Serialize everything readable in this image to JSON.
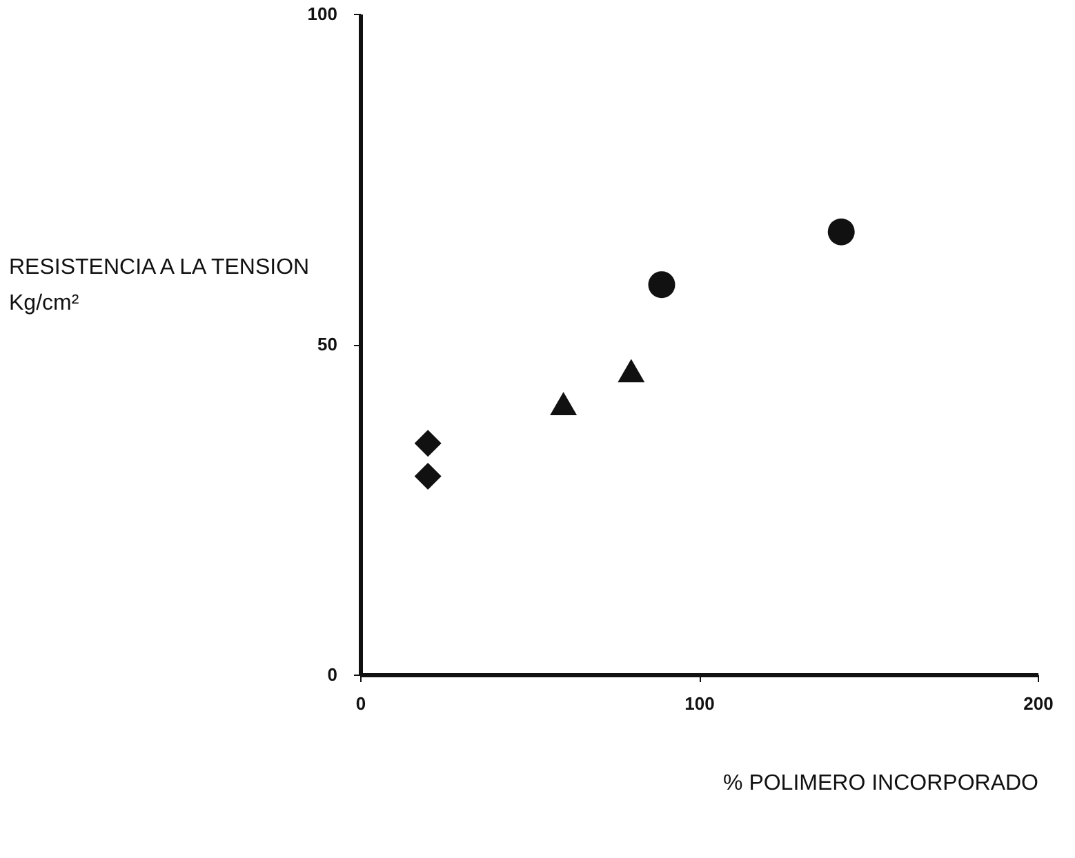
{
  "chart_data": {
    "type": "scatter",
    "xlabel": "% POLIMERO INCORPORADO",
    "ylabel": "RESISTENCIA A LA TENSION\nKg/cm²",
    "xlim": [
      0,
      200
    ],
    "xticks": [
      0,
      100,
      200
    ],
    "ylim": [
      0,
      100
    ],
    "yticks": [
      0,
      50,
      100
    ],
    "grid": false,
    "series": [
      {
        "color": "#111111",
        "marker": "diamond",
        "x": [
          20
        ],
        "values": [
          35
        ]
      },
      {
        "color": "#111111",
        "marker": "diamond",
        "x": [
          20
        ],
        "values": [
          30
        ]
      },
      {
        "color": "#111111",
        "marker": "triangle",
        "x": [
          60
        ],
        "values": [
          41
        ]
      },
      {
        "color": "#111111",
        "marker": "triangle",
        "x": [
          80
        ],
        "values": [
          46
        ]
      },
      {
        "color": "#111111",
        "marker": "circle",
        "x": [
          89
        ],
        "values": [
          59
        ]
      },
      {
        "color": "#111111",
        "marker": "circle",
        "x": [
          142
        ],
        "values": [
          67
        ]
      }
    ]
  }
}
